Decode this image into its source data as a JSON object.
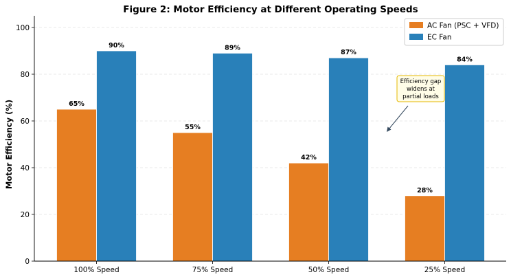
{
  "chart_data": {
    "type": "bar",
    "title": "Figure 2: Motor Efficiency at Different Operating Speeds",
    "xlabel": "",
    "ylabel": "Motor Efficiency (%)",
    "ylim": [
      0,
      105
    ],
    "yticks": [
      0,
      20,
      40,
      60,
      80,
      100
    ],
    "categories": [
      "100% Speed",
      "75% Speed",
      "50% Speed",
      "25% Speed"
    ],
    "series": [
      {
        "name": "AC Fan (PSC + VFD)",
        "color": "#e67e22",
        "values": [
          65,
          55,
          42,
          28
        ],
        "labels": [
          "65%",
          "55%",
          "42%",
          "28%"
        ]
      },
      {
        "name": "EC Fan",
        "color": "#2980b9",
        "values": [
          90,
          89,
          87,
          84
        ],
        "labels": [
          "90%",
          "89%",
          "87%",
          "84%"
        ]
      }
    ],
    "grid": true,
    "legend_position": "top-right",
    "annotation": {
      "lines": [
        "Efficiency gap",
        "widens at",
        "partial loads"
      ],
      "box_fill": "#fffde7",
      "box_stroke": "#e6b800"
    }
  }
}
